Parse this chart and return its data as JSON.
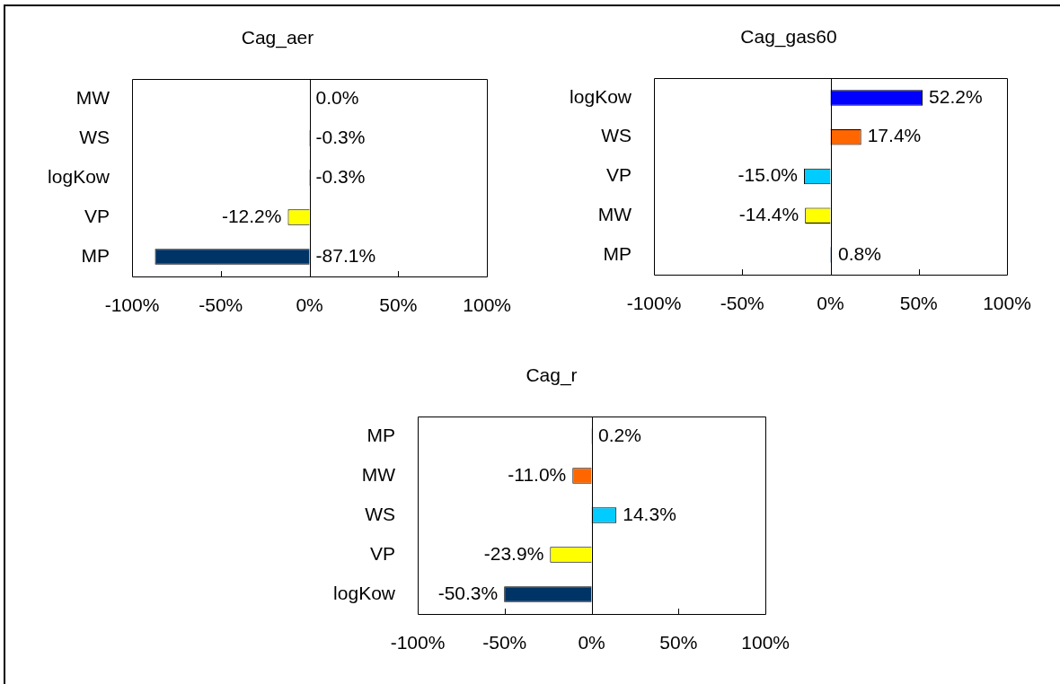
{
  "chart_data": [
    {
      "type": "bar",
      "orientation": "horizontal",
      "title": "Cag_aer",
      "categories": [
        "MW",
        "WS",
        "logKow",
        "VP",
        "MP"
      ],
      "values": [
        0,
        -0.3,
        -0.3,
        -12.2,
        -87.1
      ],
      "colors": [
        "#0000ff",
        "#ff6600",
        "#00ccff",
        "#ffff00",
        "#003366"
      ],
      "value_labels": [
        "0.0%",
        "-0.3%",
        "-0.3%",
        "-12.2%",
        "-87.1%"
      ],
      "xlim": [
        -100,
        100
      ],
      "xticks": [
        {
          "value": -100,
          "label": "-100%"
        },
        {
          "value": -50,
          "label": "-50%"
        },
        {
          "value": 0,
          "label": "0%"
        },
        {
          "value": 50,
          "label": "50%"
        },
        {
          "value": 100,
          "label": "100%"
        }
      ]
    },
    {
      "type": "bar",
      "orientation": "horizontal",
      "title": "Cag_gas60",
      "categories": [
        "logKow",
        "WS",
        "VP",
        "MW",
        "MP"
      ],
      "values": [
        52.2,
        17.4,
        -15.0,
        -14.4,
        0.8
      ],
      "colors": [
        "#0000ff",
        "#ff6600",
        "#00ccff",
        "#ffff00",
        "#003366"
      ],
      "value_labels": [
        "52.2%",
        "17.4%",
        "-15.0%",
        "-14.4%",
        "0.8%"
      ],
      "xlim": [
        -100,
        100
      ],
      "xticks": [
        {
          "value": -100,
          "label": "-100%"
        },
        {
          "value": -50,
          "label": "-50%"
        },
        {
          "value": 0,
          "label": "0%"
        },
        {
          "value": 50,
          "label": "50%"
        },
        {
          "value": 100,
          "label": "100%"
        }
      ]
    },
    {
      "type": "bar",
      "orientation": "horizontal",
      "title": "Cag_r",
      "categories": [
        "MP",
        "MW",
        "WS",
        "VP",
        "logKow"
      ],
      "values": [
        0.2,
        -11.0,
        14.3,
        -23.9,
        -50.3
      ],
      "colors": [
        "#0000ff",
        "#ff6600",
        "#00ccff",
        "#ffff00",
        "#003366"
      ],
      "value_labels": [
        "0.2%",
        "-11.0%",
        "14.3%",
        "-23.9%",
        "-50.3%"
      ],
      "xlim": [
        -100,
        100
      ],
      "xticks": [
        {
          "value": -100,
          "label": "-100%"
        },
        {
          "value": -50,
          "label": "-50%"
        },
        {
          "value": 0,
          "label": "0%"
        },
        {
          "value": 50,
          "label": "50%"
        },
        {
          "value": 100,
          "label": "100%"
        }
      ]
    }
  ]
}
